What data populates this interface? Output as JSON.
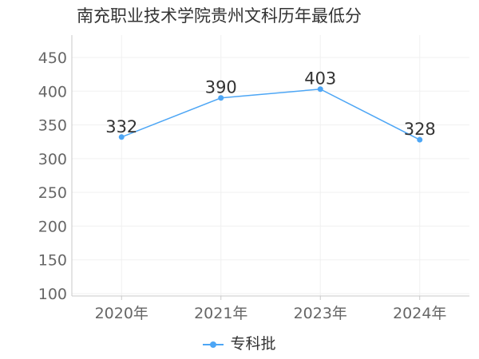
{
  "colors": {
    "series": "#4da6f5",
    "axis": "#c8c8c8",
    "grid": "#f0f0f0",
    "text": "#333333",
    "tick": "#666666"
  },
  "chart_data": {
    "type": "line",
    "title": "南充职业技术学院贵州文科历年最低分",
    "xlabel": "",
    "ylabel": "",
    "categories": [
      "2020年",
      "2021年",
      "2023年",
      "2024年"
    ],
    "series": [
      {
        "name": "专科批",
        "values": [
          332,
          390,
          403,
          328
        ]
      }
    ],
    "ylim": [
      100,
      450
    ],
    "yticks": [
      100,
      150,
      200,
      250,
      300,
      350,
      400,
      450
    ],
    "grid": true,
    "legend": "bottom",
    "data_labels": true
  }
}
